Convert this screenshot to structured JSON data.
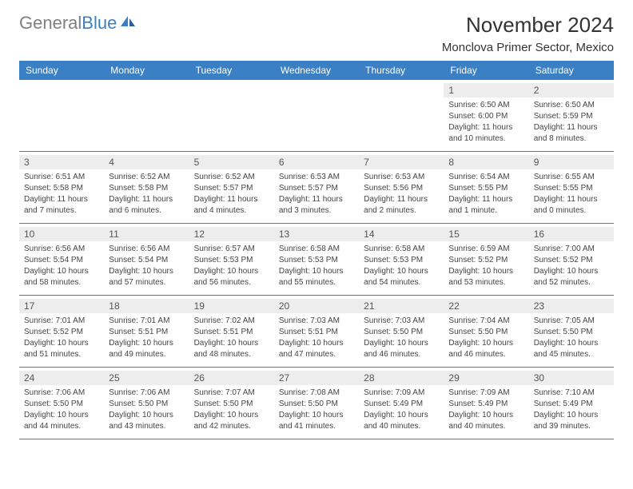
{
  "logo": {
    "text1": "General",
    "text2": "Blue"
  },
  "title": "November 2024",
  "location": "Monclova Primer Sector, Mexico",
  "colors": {
    "header_bg": "#3b7fc4",
    "header_text": "#ffffff",
    "daynum_bg": "#ededed",
    "border": "#3b7fc4"
  },
  "day_headers": [
    "Sunday",
    "Monday",
    "Tuesday",
    "Wednesday",
    "Thursday",
    "Friday",
    "Saturday"
  ],
  "weeks": [
    [
      null,
      null,
      null,
      null,
      null,
      {
        "num": "1",
        "sunrise": "Sunrise: 6:50 AM",
        "sunset": "Sunset: 6:00 PM",
        "daylight": "Daylight: 11 hours and 10 minutes."
      },
      {
        "num": "2",
        "sunrise": "Sunrise: 6:50 AM",
        "sunset": "Sunset: 5:59 PM",
        "daylight": "Daylight: 11 hours and 8 minutes."
      }
    ],
    [
      {
        "num": "3",
        "sunrise": "Sunrise: 6:51 AM",
        "sunset": "Sunset: 5:58 PM",
        "daylight": "Daylight: 11 hours and 7 minutes."
      },
      {
        "num": "4",
        "sunrise": "Sunrise: 6:52 AM",
        "sunset": "Sunset: 5:58 PM",
        "daylight": "Daylight: 11 hours and 6 minutes."
      },
      {
        "num": "5",
        "sunrise": "Sunrise: 6:52 AM",
        "sunset": "Sunset: 5:57 PM",
        "daylight": "Daylight: 11 hours and 4 minutes."
      },
      {
        "num": "6",
        "sunrise": "Sunrise: 6:53 AM",
        "sunset": "Sunset: 5:57 PM",
        "daylight": "Daylight: 11 hours and 3 minutes."
      },
      {
        "num": "7",
        "sunrise": "Sunrise: 6:53 AM",
        "sunset": "Sunset: 5:56 PM",
        "daylight": "Daylight: 11 hours and 2 minutes."
      },
      {
        "num": "8",
        "sunrise": "Sunrise: 6:54 AM",
        "sunset": "Sunset: 5:55 PM",
        "daylight": "Daylight: 11 hours and 1 minute."
      },
      {
        "num": "9",
        "sunrise": "Sunrise: 6:55 AM",
        "sunset": "Sunset: 5:55 PM",
        "daylight": "Daylight: 11 hours and 0 minutes."
      }
    ],
    [
      {
        "num": "10",
        "sunrise": "Sunrise: 6:56 AM",
        "sunset": "Sunset: 5:54 PM",
        "daylight": "Daylight: 10 hours and 58 minutes."
      },
      {
        "num": "11",
        "sunrise": "Sunrise: 6:56 AM",
        "sunset": "Sunset: 5:54 PM",
        "daylight": "Daylight: 10 hours and 57 minutes."
      },
      {
        "num": "12",
        "sunrise": "Sunrise: 6:57 AM",
        "sunset": "Sunset: 5:53 PM",
        "daylight": "Daylight: 10 hours and 56 minutes."
      },
      {
        "num": "13",
        "sunrise": "Sunrise: 6:58 AM",
        "sunset": "Sunset: 5:53 PM",
        "daylight": "Daylight: 10 hours and 55 minutes."
      },
      {
        "num": "14",
        "sunrise": "Sunrise: 6:58 AM",
        "sunset": "Sunset: 5:53 PM",
        "daylight": "Daylight: 10 hours and 54 minutes."
      },
      {
        "num": "15",
        "sunrise": "Sunrise: 6:59 AM",
        "sunset": "Sunset: 5:52 PM",
        "daylight": "Daylight: 10 hours and 53 minutes."
      },
      {
        "num": "16",
        "sunrise": "Sunrise: 7:00 AM",
        "sunset": "Sunset: 5:52 PM",
        "daylight": "Daylight: 10 hours and 52 minutes."
      }
    ],
    [
      {
        "num": "17",
        "sunrise": "Sunrise: 7:01 AM",
        "sunset": "Sunset: 5:52 PM",
        "daylight": "Daylight: 10 hours and 51 minutes."
      },
      {
        "num": "18",
        "sunrise": "Sunrise: 7:01 AM",
        "sunset": "Sunset: 5:51 PM",
        "daylight": "Daylight: 10 hours and 49 minutes."
      },
      {
        "num": "19",
        "sunrise": "Sunrise: 7:02 AM",
        "sunset": "Sunset: 5:51 PM",
        "daylight": "Daylight: 10 hours and 48 minutes."
      },
      {
        "num": "20",
        "sunrise": "Sunrise: 7:03 AM",
        "sunset": "Sunset: 5:51 PM",
        "daylight": "Daylight: 10 hours and 47 minutes."
      },
      {
        "num": "21",
        "sunrise": "Sunrise: 7:03 AM",
        "sunset": "Sunset: 5:50 PM",
        "daylight": "Daylight: 10 hours and 46 minutes."
      },
      {
        "num": "22",
        "sunrise": "Sunrise: 7:04 AM",
        "sunset": "Sunset: 5:50 PM",
        "daylight": "Daylight: 10 hours and 46 minutes."
      },
      {
        "num": "23",
        "sunrise": "Sunrise: 7:05 AM",
        "sunset": "Sunset: 5:50 PM",
        "daylight": "Daylight: 10 hours and 45 minutes."
      }
    ],
    [
      {
        "num": "24",
        "sunrise": "Sunrise: 7:06 AM",
        "sunset": "Sunset: 5:50 PM",
        "daylight": "Daylight: 10 hours and 44 minutes."
      },
      {
        "num": "25",
        "sunrise": "Sunrise: 7:06 AM",
        "sunset": "Sunset: 5:50 PM",
        "daylight": "Daylight: 10 hours and 43 minutes."
      },
      {
        "num": "26",
        "sunrise": "Sunrise: 7:07 AM",
        "sunset": "Sunset: 5:50 PM",
        "daylight": "Daylight: 10 hours and 42 minutes."
      },
      {
        "num": "27",
        "sunrise": "Sunrise: 7:08 AM",
        "sunset": "Sunset: 5:50 PM",
        "daylight": "Daylight: 10 hours and 41 minutes."
      },
      {
        "num": "28",
        "sunrise": "Sunrise: 7:09 AM",
        "sunset": "Sunset: 5:49 PM",
        "daylight": "Daylight: 10 hours and 40 minutes."
      },
      {
        "num": "29",
        "sunrise": "Sunrise: 7:09 AM",
        "sunset": "Sunset: 5:49 PM",
        "daylight": "Daylight: 10 hours and 40 minutes."
      },
      {
        "num": "30",
        "sunrise": "Sunrise: 7:10 AM",
        "sunset": "Sunset: 5:49 PM",
        "daylight": "Daylight: 10 hours and 39 minutes."
      }
    ]
  ]
}
